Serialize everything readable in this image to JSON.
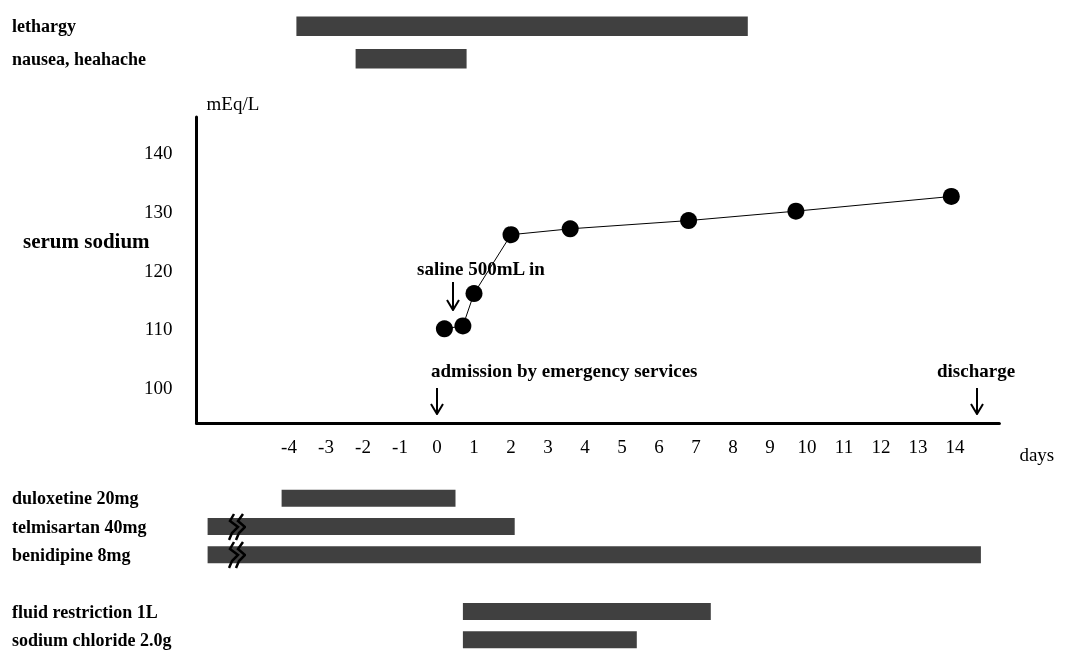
{
  "chart_data": [
    {
      "type": "bar",
      "orientation": "horizontal",
      "categories": [
        "lethargy",
        "nausea, heahache"
      ],
      "base": [
        -3.8,
        -2.2
      ],
      "values": [
        12.2,
        3.0
      ],
      "color": "#404040",
      "xticks": [
        -4,
        -3,
        -2,
        -1,
        0,
        1,
        2,
        3,
        4,
        5,
        6,
        7,
        8,
        9,
        10,
        11,
        12,
        13,
        14
      ],
      "tick_labels": "y"
    },
    {
      "type": "line",
      "title": "serum sodium",
      "ylabel": "mEq/L",
      "xlabel": "days",
      "x": [
        0.2,
        0.7,
        1.0,
        2.0,
        3.6,
        6.8,
        9.7,
        13.9
      ],
      "series": [
        {
          "color": "#000000",
          "values": [
            110,
            110.5,
            116,
            126,
            127,
            128.4,
            130,
            132.5
          ]
        }
      ],
      "marker": "circle",
      "xlim": [
        -6.5,
        15.2
      ],
      "xticks": [
        -4,
        -3,
        -2,
        -1,
        0,
        1,
        2,
        3,
        4,
        5,
        6,
        7,
        8,
        9,
        10,
        11,
        12,
        13,
        14
      ],
      "ylim": [
        94,
        146
      ],
      "yticks": [
        100,
        110,
        120,
        130,
        140
      ],
      "annotations": [
        "saline 500mL in",
        "admission by emergency services",
        "discharge"
      ]
    },
    {
      "type": "bar",
      "orientation": "horizontal",
      "categories": [
        "duloxetine 20mg",
        "telmisartan 40mg",
        "benidipine 8mg",
        null,
        "fluid restriction 1L",
        "sodium chloride 2.0g"
      ],
      "base": [
        -4.2,
        -6.2,
        -6.2,
        null,
        0.7,
        0.7
      ],
      "values": [
        4.7,
        8.3,
        20.9,
        null,
        6.7,
        4.7
      ],
      "color": "#404040",
      "xticks": [
        -4,
        -3,
        -2,
        -1,
        0,
        1,
        2,
        3,
        4,
        5,
        6,
        7,
        8,
        9,
        10,
        11,
        12,
        13,
        14
      ],
      "tick_labels": "y"
    }
  ]
}
